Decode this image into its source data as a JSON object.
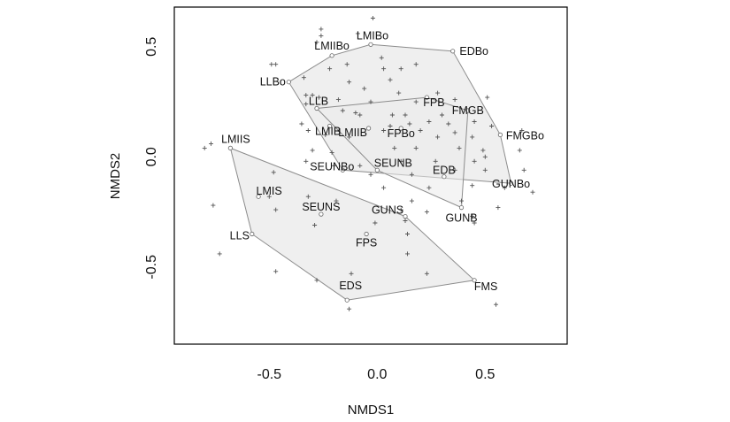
{
  "chart_data": {
    "type": "scatter",
    "title": "",
    "xlabel": "NMDS1",
    "ylabel": "NMDS2",
    "xlim": [
      -0.94,
      0.88
    ],
    "ylim": [
      -0.85,
      0.68
    ],
    "xticks": [
      -0.5,
      0.0,
      0.5
    ],
    "yticks": [
      -0.5,
      0.0,
      0.5
    ],
    "xtick_labels": [
      "-0.5",
      "0.0",
      "0.5"
    ],
    "ytick_labels": [
      "-0.5",
      "0.0",
      "0.5"
    ],
    "grid": false,
    "colors": {
      "hull_fill": "#ebebeb",
      "hull_stroke": "#8c8c8c",
      "point": "#555555",
      "frame": "#000000"
    },
    "labeled_points": [
      {
        "label": "LMIBo",
        "x": -0.03,
        "y": 0.51
      },
      {
        "label": "EDBo",
        "x": 0.35,
        "y": 0.48
      },
      {
        "label": "LMIIBo",
        "x": -0.21,
        "y": 0.46
      },
      {
        "label": "LLBo",
        "x": -0.41,
        "y": 0.34
      },
      {
        "label": "LLB",
        "x": -0.28,
        "y": 0.22
      },
      {
        "label": "FPB",
        "x": 0.23,
        "y": 0.27
      },
      {
        "label": "FMGB",
        "x": 0.42,
        "y": 0.21
      },
      {
        "label": "LMIB",
        "x": -0.22,
        "y": 0.14
      },
      {
        "label": "LMIIB",
        "x": -0.04,
        "y": 0.13
      },
      {
        "label": "FPBo",
        "x": 0.11,
        "y": 0.13
      },
      {
        "label": "FMGBo",
        "x": 0.57,
        "y": 0.1
      },
      {
        "label": "LMIIS",
        "x": -0.68,
        "y": 0.04
      },
      {
        "label": "SEUNBo",
        "x": -0.16,
        "y": -0.06
      },
      {
        "label": "SEUNB",
        "x": 0.0,
        "y": -0.06
      },
      {
        "label": "EDB",
        "x": 0.31,
        "y": -0.09
      },
      {
        "label": "GUNBo",
        "x": 0.62,
        "y": -0.12
      },
      {
        "label": "LMIS",
        "x": -0.55,
        "y": -0.18
      },
      {
        "label": "GUNB",
        "x": 0.39,
        "y": -0.23
      },
      {
        "label": "SEUNS",
        "x": -0.26,
        "y": -0.26
      },
      {
        "label": "GUNS",
        "x": 0.13,
        "y": -0.27
      },
      {
        "label": "LLS",
        "x": -0.58,
        "y": -0.35
      },
      {
        "label": "FPS",
        "x": -0.05,
        "y": -0.35
      },
      {
        "label": "FMS",
        "x": 0.45,
        "y": -0.56
      },
      {
        "label": "EDS",
        "x": -0.14,
        "y": -0.65
      }
    ],
    "hulls": [
      {
        "vertices": [
          "LLBo",
          "LMIIBo",
          "LMIBo",
          "EDBo",
          "FMGBo",
          "GUNBo",
          "SEUNBo"
        ]
      },
      {
        "vertices": [
          "LLB",
          "FPB",
          "FMGB",
          "GUNB",
          "SEUNB"
        ]
      },
      {
        "vertices": [
          "LMIIS",
          "GUNS",
          "FMS",
          "EDS",
          "LLS"
        ]
      }
    ],
    "species_points": [
      [
        -0.02,
        0.63
      ],
      [
        -0.26,
        0.58
      ],
      [
        -0.26,
        0.55
      ],
      [
        -0.28,
        0.52
      ],
      [
        -0.09,
        0.56
      ],
      [
        -0.49,
        0.42
      ],
      [
        -0.47,
        0.42
      ],
      [
        0.02,
        0.45
      ],
      [
        -0.14,
        0.42
      ],
      [
        0.03,
        0.4
      ],
      [
        0.11,
        0.4
      ],
      [
        -0.22,
        0.4
      ],
      [
        0.18,
        0.42
      ],
      [
        -0.34,
        0.36
      ],
      [
        -0.13,
        0.34
      ],
      [
        -0.06,
        0.31
      ],
      [
        0.06,
        0.35
      ],
      [
        -0.33,
        0.28
      ],
      [
        -0.3,
        0.28
      ],
      [
        0.1,
        0.29
      ],
      [
        0.28,
        0.29
      ],
      [
        -0.33,
        0.24
      ],
      [
        -0.27,
        0.27
      ],
      [
        -0.18,
        0.26
      ],
      [
        -0.03,
        0.25
      ],
      [
        0.18,
        0.25
      ],
      [
        0.36,
        0.26
      ],
      [
        -0.16,
        0.21
      ],
      [
        -0.1,
        0.2
      ],
      [
        -0.08,
        0.19
      ],
      [
        0.07,
        0.19
      ],
      [
        0.13,
        0.19
      ],
      [
        0.3,
        0.19
      ],
      [
        0.51,
        0.27
      ],
      [
        0.24,
        0.16
      ],
      [
        0.45,
        0.16
      ],
      [
        -0.35,
        0.15
      ],
      [
        0.06,
        0.14
      ],
      [
        0.15,
        0.15
      ],
      [
        0.33,
        0.15
      ],
      [
        0.53,
        0.14
      ],
      [
        0.67,
        0.12
      ],
      [
        -0.32,
        0.12
      ],
      [
        0.03,
        0.12
      ],
      [
        0.2,
        0.12
      ],
      [
        0.36,
        0.11
      ],
      [
        -0.24,
        0.1
      ],
      [
        -0.13,
        0.09
      ],
      [
        0.28,
        0.09
      ],
      [
        0.44,
        0.09
      ],
      [
        -0.8,
        0.04
      ],
      [
        -0.77,
        0.06
      ],
      [
        -0.3,
        0.03
      ],
      [
        -0.21,
        0.02
      ],
      [
        0.08,
        0.04
      ],
      [
        0.18,
        0.04
      ],
      [
        0.38,
        0.04
      ],
      [
        0.49,
        0.03
      ],
      [
        0.66,
        0.03
      ],
      [
        -0.33,
        -0.02
      ],
      [
        0.11,
        -0.02
      ],
      [
        0.27,
        -0.02
      ],
      [
        0.45,
        -0.02
      ],
      [
        0.5,
        0.0
      ],
      [
        -0.2,
        -0.04
      ],
      [
        -0.08,
        -0.04
      ],
      [
        -0.03,
        -0.08
      ],
      [
        0.16,
        -0.08
      ],
      [
        0.36,
        -0.06
      ],
      [
        0.5,
        -0.06
      ],
      [
        0.68,
        -0.06
      ],
      [
        -0.48,
        -0.07
      ],
      [
        0.03,
        -0.14
      ],
      [
        0.24,
        -0.14
      ],
      [
        0.44,
        -0.13
      ],
      [
        0.59,
        -0.14
      ],
      [
        0.72,
        -0.16
      ],
      [
        -0.5,
        -0.18
      ],
      [
        -0.32,
        -0.18
      ],
      [
        -0.19,
        -0.2
      ],
      [
        0.16,
        -0.2
      ],
      [
        0.39,
        -0.2
      ],
      [
        -0.76,
        -0.22
      ],
      [
        -0.47,
        -0.24
      ],
      [
        0.11,
        -0.24
      ],
      [
        0.23,
        -0.25
      ],
      [
        0.44,
        -0.27
      ],
      [
        0.56,
        -0.23
      ],
      [
        -0.29,
        -0.31
      ],
      [
        -0.01,
        -0.3
      ],
      [
        0.13,
        -0.29
      ],
      [
        0.14,
        -0.35
      ],
      [
        0.45,
        -0.3
      ],
      [
        -0.73,
        -0.44
      ],
      [
        -0.47,
        -0.52
      ],
      [
        -0.12,
        -0.53
      ],
      [
        0.23,
        -0.53
      ],
      [
        -0.28,
        -0.56
      ],
      [
        0.14,
        -0.44
      ],
      [
        -0.13,
        -0.69
      ],
      [
        0.55,
        -0.67
      ]
    ]
  }
}
